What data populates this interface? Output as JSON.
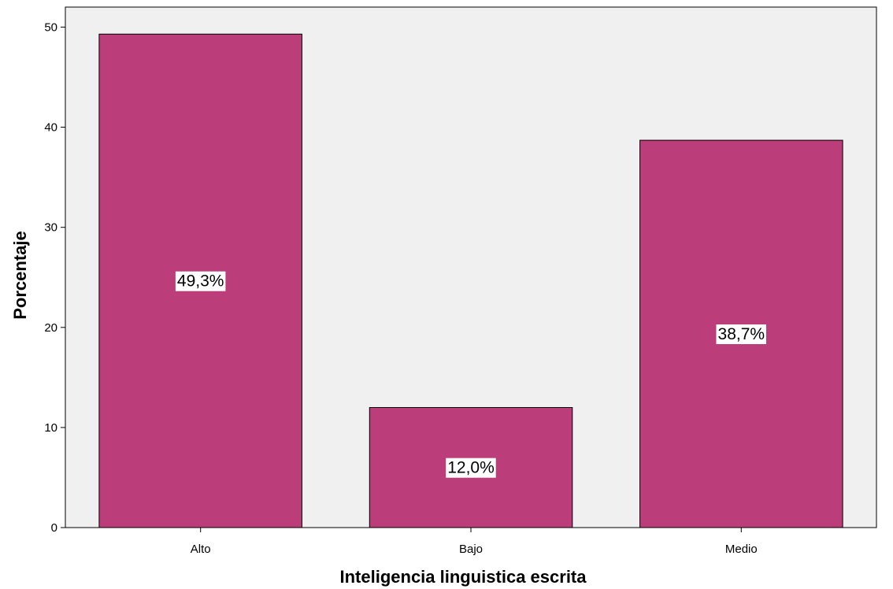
{
  "chart_data": {
    "type": "bar",
    "title": "",
    "xlabel": "Inteligencia linguistica escrita",
    "ylabel": "Porcentaje",
    "categories": [
      "Alto",
      "Bajo",
      "Medio"
    ],
    "values": [
      49.3,
      12.0,
      38.7
    ],
    "data_labels": [
      "49,3%",
      "12,0%",
      "38,7%"
    ],
    "ylim": [
      0,
      52
    ],
    "yticks": [
      0,
      10,
      20,
      30,
      40,
      50
    ],
    "ytick_labels": [
      "0",
      "10",
      "20",
      "30",
      "40",
      "50"
    ],
    "grid": false,
    "legend": "none",
    "colors": {
      "bar": "#bb3e7b",
      "plot_background": "#f0f0f0",
      "axis": "#000000"
    }
  }
}
